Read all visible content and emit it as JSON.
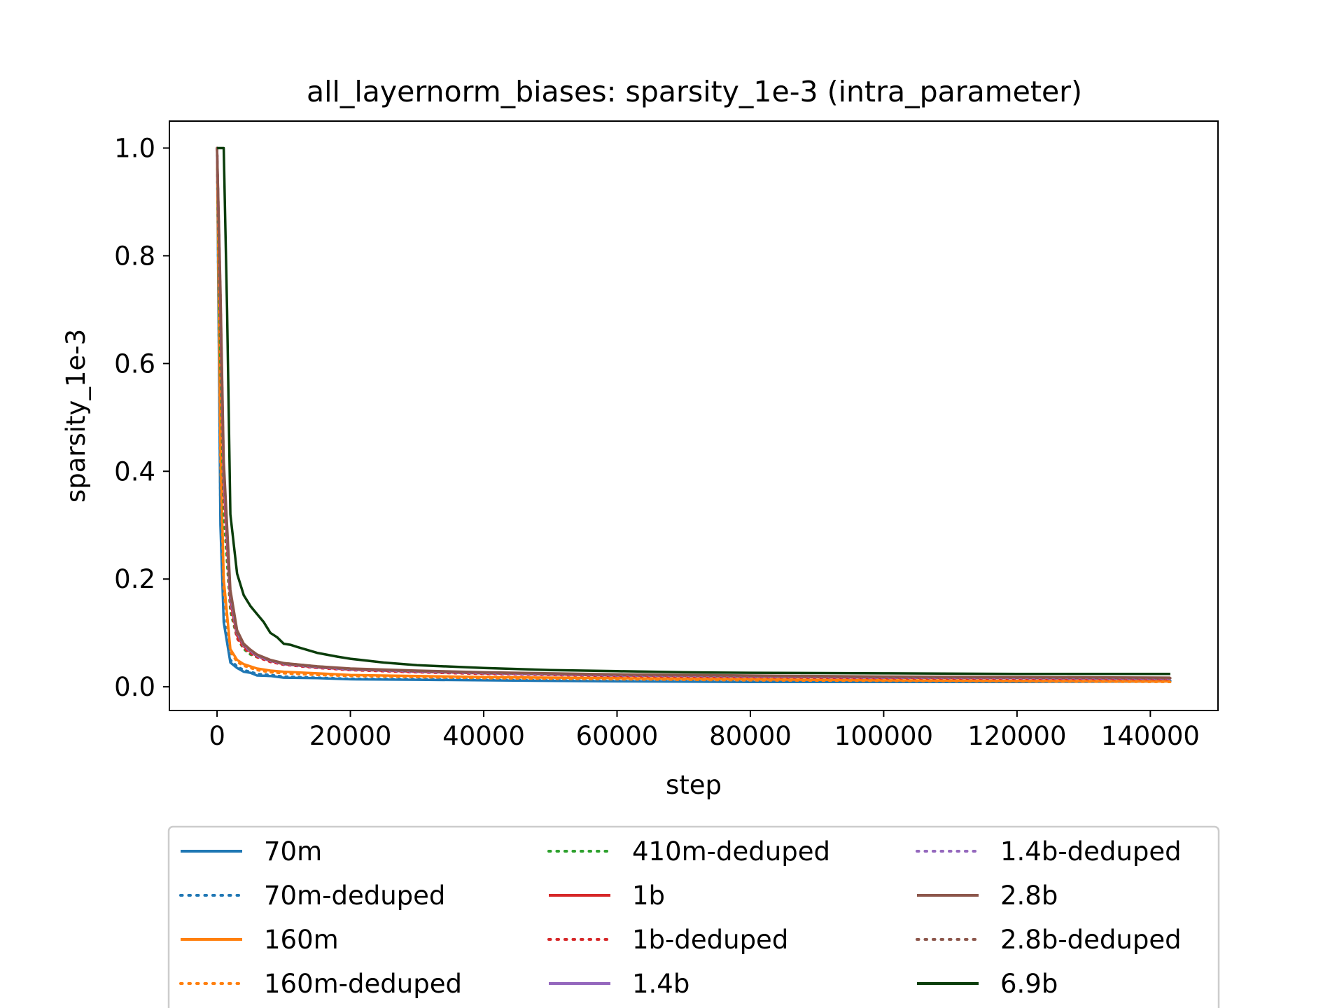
{
  "chart_data": {
    "type": "line",
    "title": "all_layernorm_biases: sparsity_1e-3 (intra_parameter)",
    "xlabel": "step",
    "ylabel": "sparsity_1e-3",
    "xlim": [
      -7150,
      150150
    ],
    "ylim": [
      -0.044,
      1.05
    ],
    "xticks": [
      0,
      20000,
      40000,
      60000,
      80000,
      100000,
      120000,
      140000
    ],
    "xtick_labels": [
      "0",
      "20000",
      "40000",
      "60000",
      "80000",
      "100000",
      "120000",
      "140000"
    ],
    "yticks": [
      0.0,
      0.2,
      0.4,
      0.6,
      0.8,
      1.0
    ],
    "ytick_labels": [
      "0.0",
      "0.2",
      "0.4",
      "0.6",
      "0.8",
      "1.0"
    ],
    "grid": false,
    "legend_position": "below plot, 3 columns",
    "series": [
      {
        "name": "70m",
        "color": "#1f77b4",
        "dash": "solid",
        "x": [
          0,
          500,
          1000,
          2000,
          3000,
          4000,
          5000,
          6000,
          8000,
          10000,
          15000,
          20000,
          30000,
          40000,
          60000,
          80000,
          100000,
          120000,
          143000
        ],
        "y": [
          1.0,
          0.3,
          0.12,
          0.045,
          0.035,
          0.028,
          0.026,
          0.021,
          0.02,
          0.017,
          0.016,
          0.014,
          0.013,
          0.012,
          0.01,
          0.009,
          0.009,
          0.009,
          0.01
        ]
      },
      {
        "name": "70m-deduped",
        "color": "#1f77b4",
        "dash": "dotted",
        "x": [
          0,
          500,
          1000,
          2000,
          3000,
          4000,
          5000,
          6000,
          8000,
          10000,
          15000,
          20000,
          30000,
          40000,
          60000,
          80000,
          100000,
          120000,
          143000
        ],
        "y": [
          1.0,
          0.32,
          0.13,
          0.05,
          0.038,
          0.031,
          0.028,
          0.024,
          0.022,
          0.019,
          0.017,
          0.015,
          0.014,
          0.013,
          0.011,
          0.01,
          0.01,
          0.01,
          0.011
        ]
      },
      {
        "name": "160m",
        "color": "#ff7f0e",
        "dash": "solid",
        "x": [
          0,
          500,
          1000,
          2000,
          3000,
          4000,
          5000,
          6000,
          8000,
          10000,
          15000,
          20000,
          30000,
          40000,
          60000,
          80000,
          100000,
          120000,
          143000
        ],
        "y": [
          1.0,
          0.45,
          0.2,
          0.07,
          0.05,
          0.042,
          0.038,
          0.034,
          0.03,
          0.028,
          0.025,
          0.022,
          0.02,
          0.018,
          0.016,
          0.014,
          0.012,
          0.011,
          0.01
        ]
      },
      {
        "name": "160m-deduped",
        "color": "#ff7f0e",
        "dash": "dotted",
        "x": [
          0,
          500,
          1000,
          2000,
          3000,
          4000,
          5000,
          6000,
          8000,
          10000,
          15000,
          20000,
          30000,
          40000,
          60000,
          80000,
          100000,
          120000,
          143000
        ],
        "y": [
          1.0,
          0.42,
          0.18,
          0.065,
          0.046,
          0.039,
          0.035,
          0.031,
          0.027,
          0.025,
          0.022,
          0.02,
          0.018,
          0.016,
          0.014,
          0.012,
          0.011,
          0.01,
          0.009
        ]
      },
      {
        "name": "410m-deduped",
        "color": "#2ca02c",
        "dash": "dotted",
        "x": [
          0,
          500,
          1000,
          2000,
          3000,
          4000,
          5000,
          6000,
          8000,
          10000,
          15000,
          20000,
          30000,
          40000,
          60000,
          80000,
          100000,
          120000,
          143000
        ],
        "y": [
          1.0,
          0.6,
          0.32,
          0.14,
          0.09,
          0.07,
          0.06,
          0.055,
          0.048,
          0.044,
          0.038,
          0.033,
          0.028,
          0.025,
          0.022,
          0.02,
          0.018,
          0.017,
          0.016
        ]
      },
      {
        "name": "1b",
        "color": "#d62728",
        "dash": "solid",
        "x": [
          0,
          500,
          1000,
          2000,
          3000,
          4000,
          5000,
          6000,
          8000,
          10000,
          15000,
          20000,
          30000,
          40000,
          60000,
          80000,
          100000,
          120000,
          143000
        ],
        "y": [
          1.0,
          0.7,
          0.38,
          0.16,
          0.095,
          0.075,
          0.065,
          0.057,
          0.048,
          0.042,
          0.036,
          0.032,
          0.028,
          0.025,
          0.021,
          0.019,
          0.017,
          0.016,
          0.015
        ]
      },
      {
        "name": "1b-deduped",
        "color": "#d62728",
        "dash": "dotted",
        "x": [
          0,
          500,
          1000,
          2000,
          3000,
          4000,
          5000,
          6000,
          8000,
          10000,
          15000,
          20000,
          30000,
          40000,
          60000,
          80000,
          100000,
          120000,
          143000
        ],
        "y": [
          1.0,
          0.68,
          0.36,
          0.15,
          0.09,
          0.072,
          0.062,
          0.055,
          0.046,
          0.041,
          0.035,
          0.031,
          0.027,
          0.024,
          0.02,
          0.018,
          0.016,
          0.015,
          0.014
        ]
      },
      {
        "name": "1.4b",
        "color": "#9467bd",
        "dash": "solid",
        "x": [
          0,
          500,
          1000,
          2000,
          3000,
          4000,
          5000,
          6000,
          8000,
          10000,
          15000,
          20000,
          30000,
          40000,
          60000,
          80000,
          100000,
          120000,
          143000
        ],
        "y": [
          1.0,
          0.72,
          0.4,
          0.17,
          0.1,
          0.078,
          0.067,
          0.058,
          0.049,
          0.043,
          0.037,
          0.033,
          0.029,
          0.026,
          0.022,
          0.02,
          0.018,
          0.017,
          0.016
        ]
      },
      {
        "name": "1.4b-deduped",
        "color": "#9467bd",
        "dash": "dotted",
        "x": [
          0,
          500,
          1000,
          2000,
          3000,
          4000,
          5000,
          6000,
          8000,
          10000,
          15000,
          20000,
          30000,
          40000,
          60000,
          80000,
          100000,
          120000,
          143000
        ],
        "y": [
          1.0,
          0.7,
          0.39,
          0.16,
          0.098,
          0.076,
          0.066,
          0.057,
          0.048,
          0.042,
          0.036,
          0.032,
          0.028,
          0.025,
          0.021,
          0.019,
          0.017,
          0.016,
          0.015
        ]
      },
      {
        "name": "2.8b",
        "color": "#8c564b",
        "dash": "solid",
        "x": [
          0,
          500,
          1000,
          2000,
          3000,
          4000,
          5000,
          6000,
          8000,
          10000,
          15000,
          20000,
          30000,
          40000,
          60000,
          80000,
          100000,
          120000,
          143000
        ],
        "y": [
          1.0,
          0.74,
          0.42,
          0.18,
          0.105,
          0.08,
          0.069,
          0.06,
          0.05,
          0.044,
          0.038,
          0.034,
          0.03,
          0.027,
          0.023,
          0.021,
          0.019,
          0.018,
          0.017
        ]
      },
      {
        "name": "2.8b-deduped",
        "color": "#8c564b",
        "dash": "dotted",
        "x": [
          0,
          500,
          1000,
          2000,
          3000,
          4000,
          5000,
          6000,
          8000,
          10000,
          15000,
          20000,
          30000,
          40000,
          60000,
          80000,
          100000,
          120000,
          143000
        ],
        "y": [
          1.0,
          0.73,
          0.41,
          0.17,
          0.1,
          0.078,
          0.068,
          0.059,
          0.049,
          0.043,
          0.037,
          0.033,
          0.029,
          0.026,
          0.022,
          0.02,
          0.018,
          0.017,
          0.016
        ]
      },
      {
        "name": "6.9b",
        "color": "#0b3d0b",
        "dash": "solid",
        "x": [
          0,
          1000,
          1500,
          2000,
          3000,
          4000,
          5000,
          6000,
          7000,
          8000,
          9000,
          10000,
          11000,
          12000,
          15000,
          18000,
          20000,
          25000,
          30000,
          40000,
          50000,
          60000,
          70000,
          80000,
          100000,
          120000,
          143000
        ],
        "y": [
          1.0,
          1.0,
          0.7,
          0.32,
          0.21,
          0.17,
          0.15,
          0.135,
          0.12,
          0.1,
          0.092,
          0.08,
          0.078,
          0.074,
          0.063,
          0.056,
          0.052,
          0.045,
          0.04,
          0.035,
          0.031,
          0.029,
          0.027,
          0.026,
          0.025,
          0.024,
          0.024
        ]
      }
    ]
  }
}
